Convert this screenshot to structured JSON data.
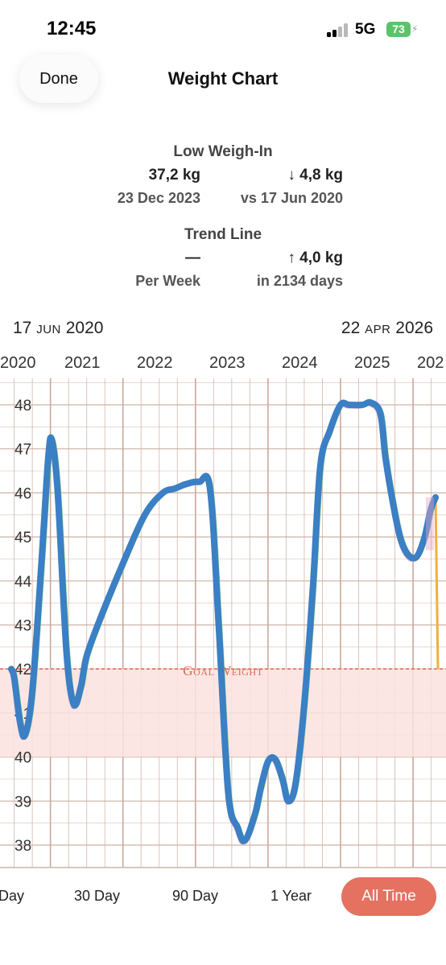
{
  "status_bar": {
    "time": "12:45",
    "network": "5G",
    "battery": "73"
  },
  "nav": {
    "done_label": "Done",
    "title": "Weight Chart"
  },
  "low_weigh_in": {
    "heading": "Low Weigh-In",
    "value": "37,2 kg",
    "date": "23 Dec 2023",
    "change": "↓ 4,8 kg",
    "compare": "vs 17 Jun 2020"
  },
  "trend_line": {
    "heading": "Trend Line",
    "value": "—",
    "period": "Per Week",
    "change": "↑ 4,0 kg",
    "duration": "in 2134 days"
  },
  "range": {
    "start_day": "17",
    "start_month": "JUN",
    "start_year": "2020",
    "end_day": "22",
    "end_month": "APR",
    "end_year": "2026"
  },
  "year_labels": [
    "2020",
    "2021",
    "2022",
    "2023",
    "2024",
    "2025",
    "202"
  ],
  "goal": {
    "label": "Goal Weight",
    "value": 42,
    "band": [
      40,
      42
    ]
  },
  "periods": [
    "Day",
    "30 Day",
    "90 Day",
    "1 Year",
    "All Time"
  ],
  "selected_period": "All Time",
  "colors": {
    "line": "#3b7fc4",
    "line_green": "#7fd17c",
    "line_pink": "#e6a4c8",
    "line_orange": "#f0b040",
    "goal": "#e06a55",
    "goal_band": "#fbe2df",
    "grid": "#c9a99b",
    "accent": "#e57160"
  },
  "chart_data": {
    "type": "line",
    "ylim": [
      37.5,
      48.5
    ],
    "y_ticks": [
      38,
      39,
      40,
      41,
      42,
      43,
      44,
      45,
      46,
      47,
      48
    ],
    "x_range": [
      2020.46,
      2026.31
    ],
    "series": [
      {
        "x": [
          2020.46,
          2020.5,
          2020.58,
          2020.65,
          2020.75,
          2020.88,
          2020.97,
          2021.02,
          2021.1,
          2021.22,
          2021.32,
          2021.42,
          2021.5,
          2021.7,
          2022.0,
          2022.3,
          2022.55,
          2022.72,
          2022.87,
          2023.05,
          2023.2,
          2023.32,
          2023.45,
          2023.58,
          2023.68,
          2023.82,
          2023.9,
          2024.0,
          2024.1,
          2024.2,
          2024.28,
          2024.38,
          2024.5,
          2024.62,
          2024.72,
          2024.85,
          2025.0,
          2025.12,
          2025.3,
          2025.42,
          2025.55,
          2025.62,
          2025.72,
          2025.82,
          2025.93,
          2026.05,
          2026.16,
          2026.24,
          2026.31
        ],
        "y": [
          42.0,
          41.8,
          40.8,
          40.5,
          41.5,
          44.5,
          46.8,
          47.2,
          46.0,
          42.4,
          41.2,
          41.6,
          42.3,
          43.2,
          44.4,
          45.5,
          46.0,
          46.1,
          46.2,
          46.25,
          46.1,
          43.0,
          39.2,
          38.4,
          38.1,
          38.7,
          39.3,
          39.9,
          39.95,
          39.5,
          39.0,
          39.4,
          41.2,
          43.9,
          46.6,
          47.4,
          48.0,
          48.0,
          48.0,
          48.05,
          47.8,
          46.8,
          45.8,
          45.0,
          44.6,
          44.55,
          45.0,
          45.6,
          45.9
        ]
      }
    ]
  }
}
